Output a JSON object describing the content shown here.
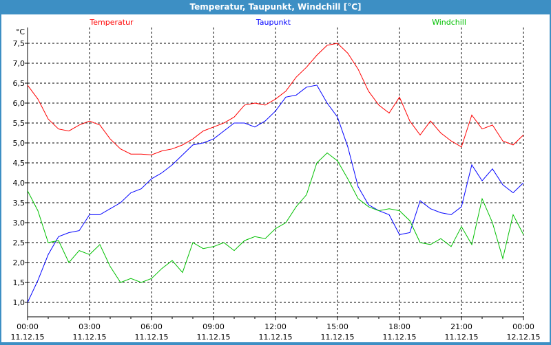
{
  "window": {
    "title": "Temperatur, Taupunkt, Windchill [°C]"
  },
  "chart_data": {
    "type": "line",
    "title": "Temperatur, Taupunkt, Windchill [°C]",
    "ylabel": "°C",
    "ylim": [
      0.65,
      7.85
    ],
    "xlim": [
      0,
      24
    ],
    "grid": true,
    "yticks": [
      1.0,
      1.5,
      2.0,
      2.5,
      3.0,
      3.5,
      4.0,
      4.5,
      5.0,
      5.5,
      6.0,
      6.5,
      7.0,
      7.5
    ],
    "ytick_labels": [
      "1,0",
      "1,5",
      "2,0",
      "2,5",
      "3,0",
      "3,5",
      "4,0",
      "4,5",
      "5,0",
      "5,5",
      "6,0",
      "6,5",
      "7,0",
      "7,5"
    ],
    "xticks": [
      {
        "hour": 0,
        "time": "00:00",
        "date": "11.12.15"
      },
      {
        "hour": 3,
        "time": "03:00",
        "date": "11.12.15"
      },
      {
        "hour": 6,
        "time": "06:00",
        "date": "11.12.15"
      },
      {
        "hour": 9,
        "time": "09:00",
        "date": "11.12.15"
      },
      {
        "hour": 12,
        "time": "12:00",
        "date": "11.12.15"
      },
      {
        "hour": 15,
        "time": "15:00",
        "date": "11.12.15"
      },
      {
        "hour": 18,
        "time": "18:00",
        "date": "11.12.15"
      },
      {
        "hour": 21,
        "time": "21:00",
        "date": "11.12.15"
      },
      {
        "hour": 24,
        "time": "00:00",
        "date": "12.12.15"
      }
    ],
    "x_step_hours": 0.5,
    "series": [
      {
        "name": "Temperatur",
        "color": "#ff0000",
        "legend_pos": "top-left",
        "values": [
          6.45,
          6.1,
          5.6,
          5.35,
          5.3,
          5.45,
          5.55,
          5.45,
          5.1,
          4.85,
          4.72,
          4.72,
          4.7,
          4.8,
          4.85,
          4.95,
          5.1,
          5.3,
          5.4,
          5.5,
          5.65,
          5.95,
          6.0,
          5.95,
          6.1,
          6.3,
          6.65,
          6.9,
          7.2,
          7.45,
          7.5,
          7.25,
          6.85,
          6.3,
          5.95,
          5.75,
          6.15,
          5.55,
          5.2,
          5.55,
          5.25,
          5.05,
          4.9,
          5.7,
          5.35,
          5.45,
          5.05,
          4.95,
          5.2
        ]
      },
      {
        "name": "Taupunkt",
        "color": "#0000ff",
        "legend_pos": "top-center",
        "values": [
          1.0,
          1.55,
          2.2,
          2.65,
          2.75,
          2.8,
          3.2,
          3.2,
          3.35,
          3.5,
          3.75,
          3.85,
          4.1,
          4.25,
          4.45,
          4.7,
          4.95,
          5.0,
          5.1,
          5.3,
          5.5,
          5.5,
          5.4,
          5.55,
          5.8,
          6.15,
          6.2,
          6.4,
          6.45,
          6.0,
          5.65,
          4.9,
          3.9,
          3.45,
          3.3,
          3.2,
          2.7,
          2.75,
          3.55,
          3.35,
          3.25,
          3.2,
          3.4,
          4.45,
          4.05,
          4.35,
          3.95,
          3.75,
          4.0
        ]
      },
      {
        "name": "Windchill",
        "color": "#00c000",
        "legend_pos": "top-right",
        "values": [
          3.8,
          3.3,
          2.5,
          2.55,
          2.0,
          2.3,
          2.2,
          2.45,
          1.9,
          1.5,
          1.6,
          1.5,
          1.6,
          1.85,
          2.05,
          1.75,
          2.5,
          2.35,
          2.4,
          2.5,
          2.3,
          2.55,
          2.65,
          2.6,
          2.85,
          3.0,
          3.4,
          3.7,
          4.5,
          4.75,
          4.55,
          4.1,
          3.6,
          3.4,
          3.3,
          3.35,
          3.3,
          3.05,
          2.5,
          2.45,
          2.6,
          2.4,
          2.9,
          2.45,
          3.6,
          3.0,
          2.1,
          3.2,
          2.7
        ]
      }
    ]
  }
}
